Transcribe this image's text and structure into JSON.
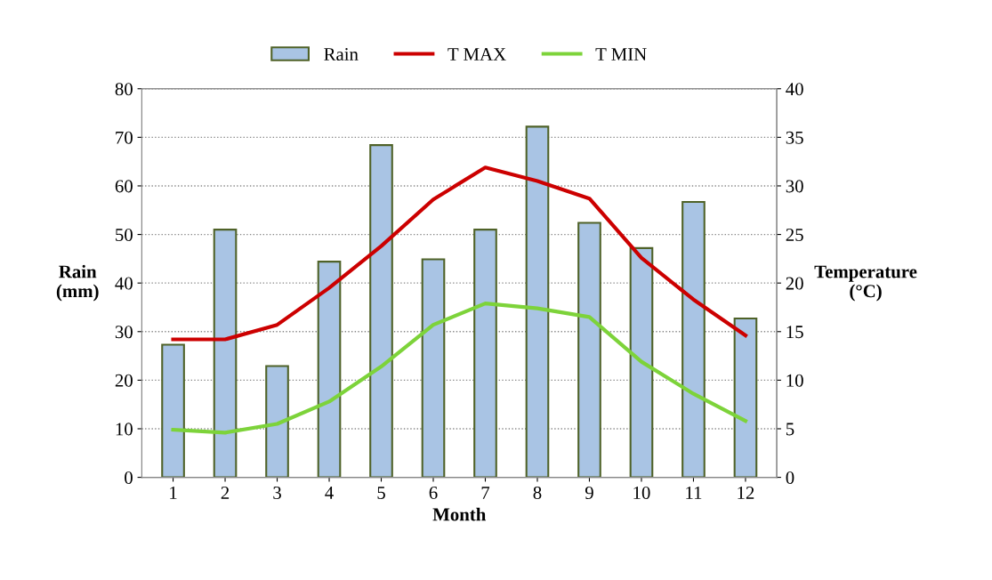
{
  "chart_data": {
    "type": "bar",
    "xlabel": "Month",
    "ylabel": "Rain\n(mm)",
    "y2label": "Temperature\n(°C)",
    "categories": [
      "1",
      "2",
      "3",
      "4",
      "5",
      "6",
      "7",
      "8",
      "9",
      "10",
      "11",
      "12"
    ],
    "series": [
      {
        "name": "Rain",
        "color": "#a9c4e4",
        "values": [
          27.3,
          51.0,
          22.9,
          44.4,
          68.4,
          44.9,
          51.0,
          72.2,
          52.4,
          47.2,
          56.7,
          32.7
        ]
      },
      {
        "name": "T MAX",
        "type": "line",
        "axis": "y2",
        "color": "#cc0000",
        "values": [
          14.2,
          14.2,
          15.7,
          19.5,
          23.8,
          28.6,
          31.9,
          30.5,
          28.7,
          22.6,
          18.3,
          14.6
        ]
      },
      {
        "name": "T MIN",
        "type": "line",
        "axis": "y2",
        "color": "#7dd33a",
        "values": [
          4.9,
          4.6,
          5.5,
          7.8,
          11.4,
          15.7,
          17.9,
          17.4,
          16.5,
          11.9,
          8.6,
          5.8
        ]
      }
    ],
    "ylim": [
      0,
      80
    ],
    "yticks": [
      0,
      10,
      20,
      30,
      40,
      50,
      60,
      70,
      80
    ],
    "y2lim": [
      0,
      40
    ],
    "y2ticks": [
      0,
      5,
      10,
      15,
      20,
      25,
      30,
      35,
      40
    ],
    "grid": "y",
    "legend": "top",
    "marker": "none",
    "line_style": "solid"
  }
}
